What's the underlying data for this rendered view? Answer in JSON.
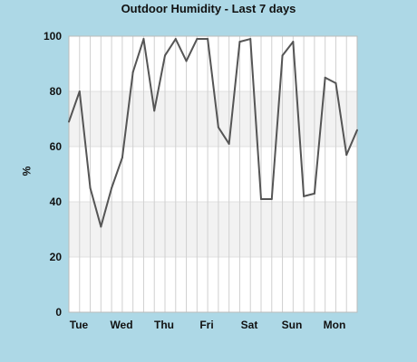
{
  "chart_data": {
    "type": "line",
    "title": "Outdoor Humidity - Last 7 days",
    "ylabel": "%",
    "xlabel": "",
    "ylim": [
      0,
      100
    ],
    "yticks": [
      0,
      20,
      40,
      60,
      80,
      100
    ],
    "x_tick_labels": [
      "Tue",
      "Wed",
      "Thu",
      "Fri",
      "Sat",
      "Sun",
      "Mon"
    ],
    "grid": "vertical lines every period; horizontal shaded bands 20-40 and 60-80",
    "colors": {
      "background": "#ADD8E6",
      "plot": "#FFFFFF",
      "band": "#F2F2F2",
      "grid": "#D0D0D0",
      "line": "#555555"
    },
    "series": [
      {
        "values": [
          69,
          80,
          45,
          31,
          45,
          56,
          87,
          99,
          73,
          93,
          99,
          91,
          99,
          99,
          67,
          61,
          98,
          99,
          41,
          41,
          93,
          98,
          42,
          43,
          85,
          83,
          57,
          66
        ]
      }
    ]
  }
}
